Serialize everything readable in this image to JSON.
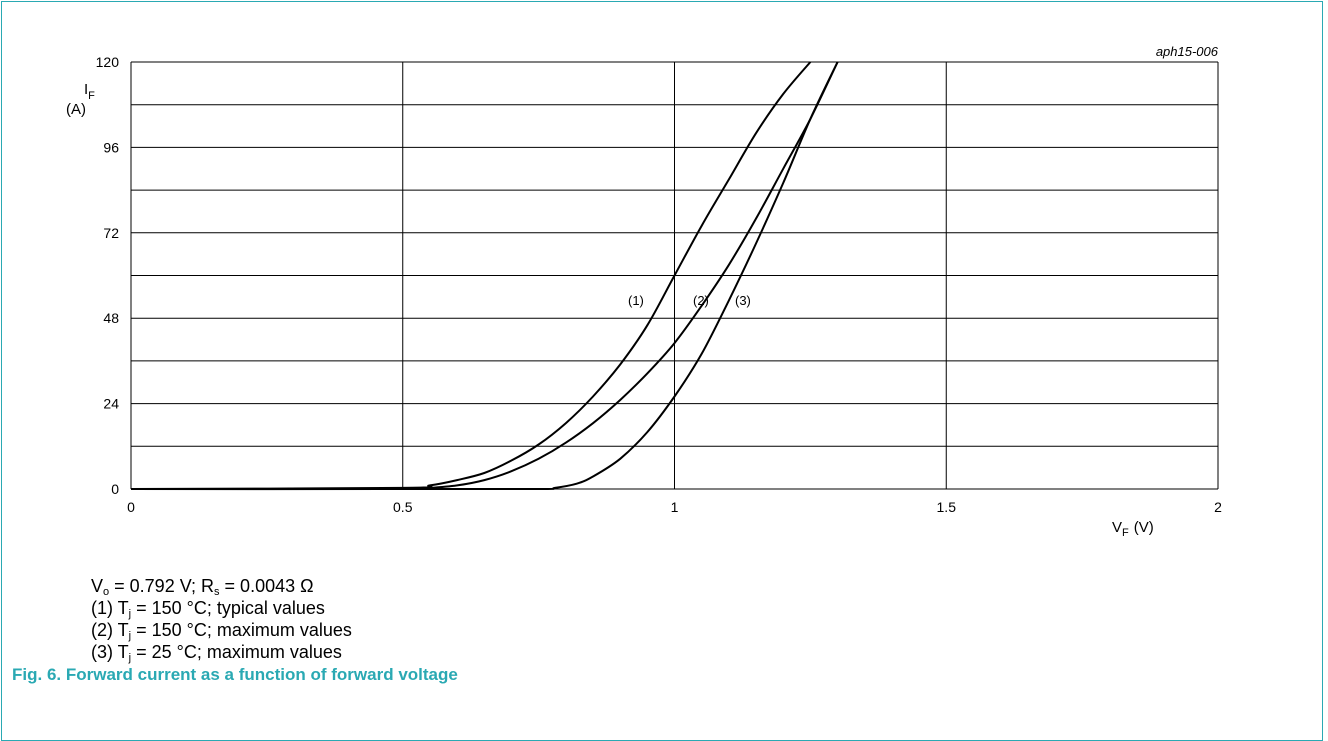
{
  "chart_data": {
    "type": "line",
    "code": "aph15-006",
    "y_label": {
      "main": "I",
      "sub": "F",
      "unit": "(A)"
    },
    "x_label": {
      "main": "V",
      "sub": "F",
      "unit": "(V)"
    },
    "xlim": [
      0,
      2
    ],
    "ylim": [
      0,
      120
    ],
    "x_ticks": [
      "0",
      "0.5",
      "1",
      "1.5",
      "2"
    ],
    "y_ticks": [
      "0",
      "24",
      "48",
      "72",
      "96",
      "120"
    ],
    "grid": true,
    "series": [
      {
        "name": "(1)",
        "points": [
          [
            0,
            0
          ],
          [
            0.5,
            0.3
          ],
          [
            0.55,
            1
          ],
          [
            0.6,
            2.5
          ],
          [
            0.65,
            4.5
          ],
          [
            0.7,
            8
          ],
          [
            0.75,
            12.5
          ],
          [
            0.8,
            18.5
          ],
          [
            0.85,
            26
          ],
          [
            0.9,
            35
          ],
          [
            0.95,
            46
          ],
          [
            1.0,
            60
          ],
          [
            1.05,
            74
          ],
          [
            1.1,
            87
          ],
          [
            1.15,
            100
          ],
          [
            1.2,
            111
          ],
          [
            1.25,
            120
          ]
        ]
      },
      {
        "name": "(2)",
        "points": [
          [
            0,
            0
          ],
          [
            0.5,
            0
          ],
          [
            0.55,
            0.3
          ],
          [
            0.6,
            1
          ],
          [
            0.65,
            2.5
          ],
          [
            0.7,
            5
          ],
          [
            0.75,
            8.5
          ],
          [
            0.8,
            13
          ],
          [
            0.85,
            18.5
          ],
          [
            0.9,
            25
          ],
          [
            0.95,
            32.5
          ],
          [
            1.0,
            41
          ],
          [
            1.05,
            51.5
          ],
          [
            1.1,
            63
          ],
          [
            1.15,
            76
          ],
          [
            1.2,
            90
          ],
          [
            1.25,
            104
          ],
          [
            1.3,
            120
          ]
        ]
      },
      {
        "name": "(3)",
        "points": [
          [
            0,
            0
          ],
          [
            0.5,
            0
          ],
          [
            0.75,
            0
          ],
          [
            0.78,
            0.3
          ],
          [
            0.82,
            1.5
          ],
          [
            0.85,
            3.5
          ],
          [
            0.9,
            8.5
          ],
          [
            0.95,
            16
          ],
          [
            1.0,
            26
          ],
          [
            1.05,
            38
          ],
          [
            1.1,
            53
          ],
          [
            1.15,
            69
          ],
          [
            1.2,
            86
          ],
          [
            1.25,
            104
          ],
          [
            1.3,
            120
          ]
        ]
      }
    ]
  },
  "notes": {
    "line0": {
      "pre": "V",
      "sub1": "o",
      "mid": " = 0.792 V; R",
      "sub2": "s",
      "post": " = 0.0043 Ω"
    },
    "line1": {
      "pre": "(1) T",
      "sub": "j",
      "post": " = 150 °C; typical values"
    },
    "line2": {
      "pre": "(2) T",
      "sub": "j",
      "post": " = 150 °C; maximum values"
    },
    "line3": {
      "pre": "(3) T",
      "sub": "j",
      "post": " = 25 °C; maximum values"
    }
  },
  "caption": "Fig. 6. Forward current as a function of forward voltage"
}
